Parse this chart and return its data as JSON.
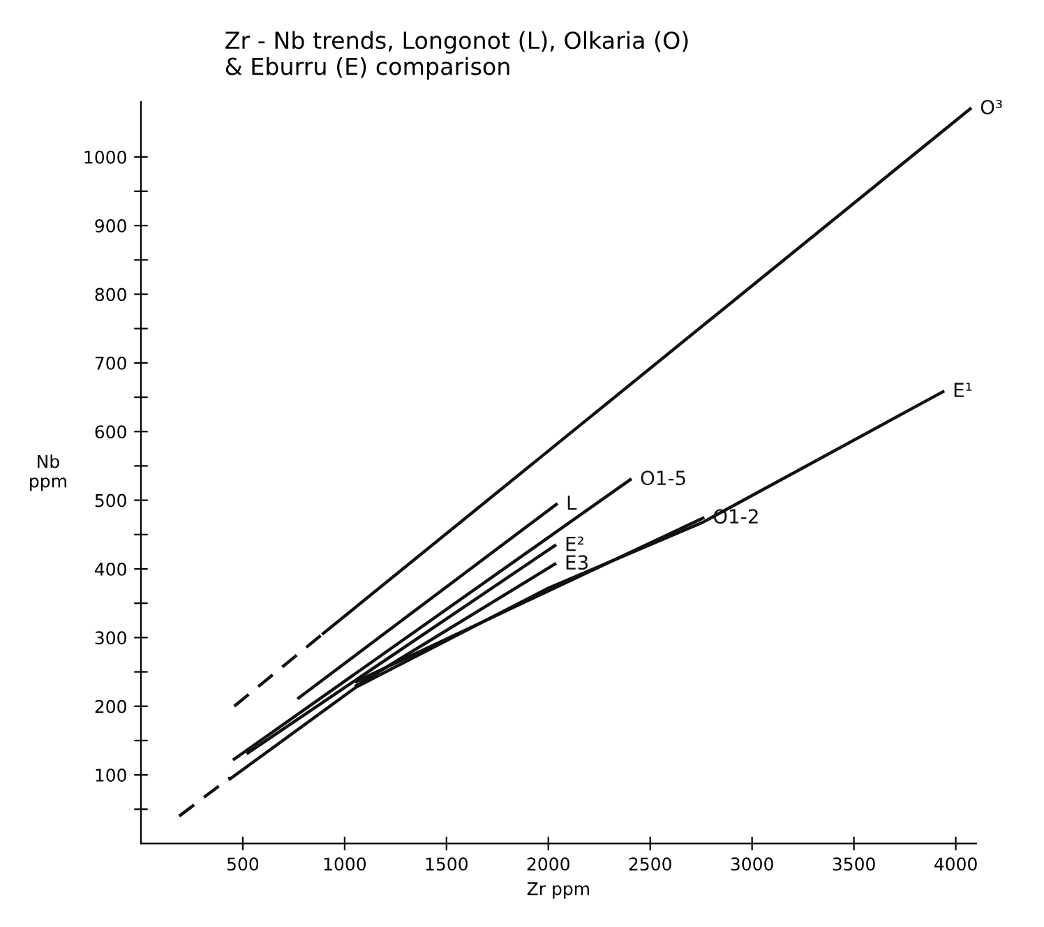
{
  "chart_data": {
    "type": "line",
    "title": "Zr - Nb trends, Longonot (L), Olkaria (O)\n& Eburru (E) comparison",
    "xlabel": "Zr ppm",
    "ylabel": "Nb\nppm",
    "xlim": [
      0,
      4100
    ],
    "ylim": [
      0,
      1080
    ],
    "xticks": [
      500,
      1000,
      1500,
      2000,
      2500,
      3000,
      3500,
      4000
    ],
    "yticks": [
      {
        "value": 50,
        "label": null
      },
      100,
      {
        "value": 150,
        "label": null
      },
      200,
      {
        "value": 250,
        "label": null
      },
      300,
      {
        "value": 350,
        "label": null
      },
      400,
      {
        "value": 450,
        "label": null
      },
      500,
      {
        "value": 550,
        "label": null
      },
      600,
      {
        "value": 650,
        "label": null
      },
      700,
      {
        "value": 750,
        "label": null
      },
      800,
      {
        "value": 850,
        "label": null
      },
      900,
      {
        "value": 950,
        "label": null
      },
      1000
    ],
    "grid": false,
    "legend": false,
    "series": [
      {
        "x": [
          458,
          895
        ],
        "values": [
          200,
          306
        ],
        "color": "#111111",
        "line_style": "dashed"
      },
      {
        "name": "O³",
        "x": [
          895,
          4071
        ],
        "values": [
          306,
          1070
        ],
        "color": "#111111",
        "line_style": "solid"
      },
      {
        "name": "L",
        "x": [
          774,
          2039
        ],
        "values": [
          212,
          494
        ],
        "color": "#111111",
        "line_style": "solid"
      },
      {
        "name": "O1-5",
        "x": [
          458,
          2402
        ],
        "values": [
          123,
          530
        ],
        "color": "#111111",
        "line_style": "solid"
      },
      {
        "name": "E²",
        "x": [
          525,
          2032
        ],
        "values": [
          132,
          434
        ],
        "color": "#111111",
        "line_style": "solid"
      },
      {
        "name": "E3",
        "x": [
          1057,
          2032
        ],
        "values": [
          230,
          407
        ],
        "color": "#111111",
        "line_style": "solid"
      },
      {
        "name": "O1-2",
        "x": [
          1057,
          2759
        ],
        "values": [
          236,
          474
        ],
        "color": "#111111",
        "line_style": "solid"
      },
      {
        "x": [
          188,
          437
        ],
        "values": [
          40,
          96
        ],
        "color": "#111111",
        "line_style": "dashed"
      },
      {
        "name": "E¹",
        "x": [
          437,
          1057,
          2000,
          2759,
          3937
        ],
        "values": [
          94,
          228,
          372,
          468,
          658
        ],
        "color": "#111111",
        "line_style": "solid"
      }
    ]
  }
}
